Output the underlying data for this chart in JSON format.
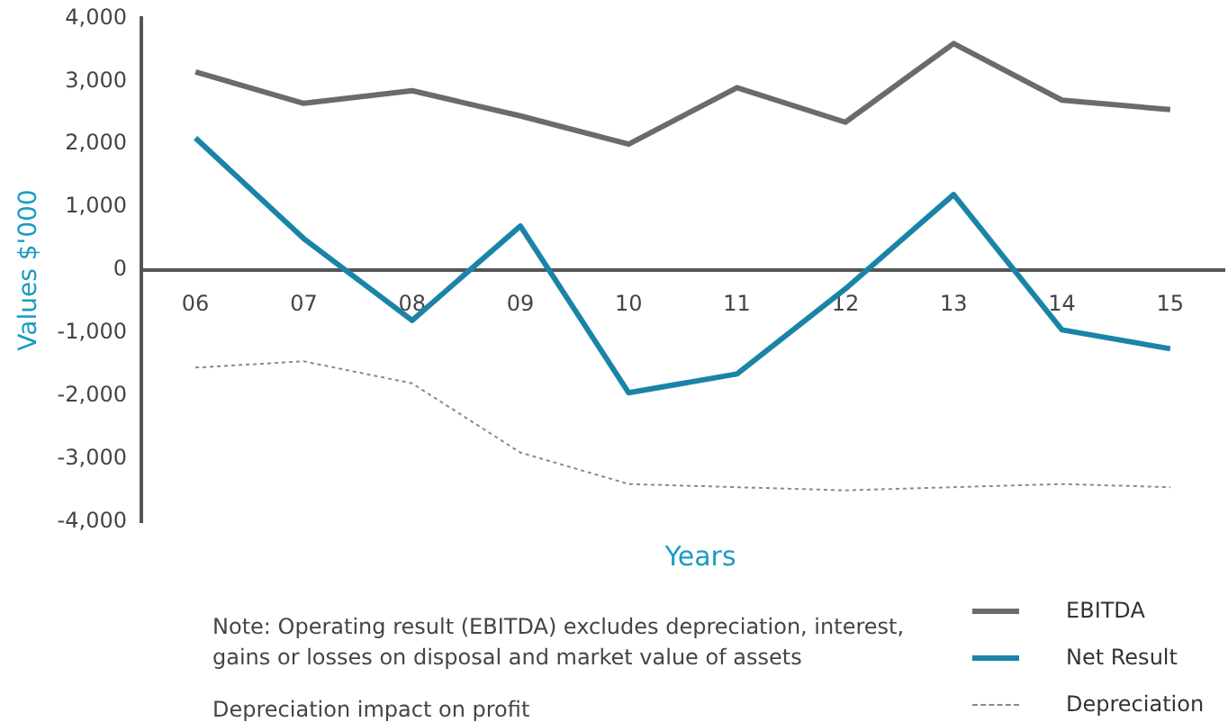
{
  "chart_data": {
    "type": "line",
    "xlabel": "Years",
    "ylabel": "Values $'000",
    "categories": [
      "06",
      "07",
      "08",
      "09",
      "10",
      "11",
      "12",
      "13",
      "14",
      "15"
    ],
    "series": [
      {
        "name": "EBITDA",
        "color": "#6b6b6b",
        "values": [
          3150,
          2650,
          2850,
          2450,
          2000,
          2900,
          2350,
          3600,
          2700,
          2550
        ],
        "line_style": "solid"
      },
      {
        "name": "Net Result",
        "color": "#1a84a8",
        "values": [
          2100,
          500,
          -800,
          700,
          -1950,
          -1650,
          -300,
          1200,
          -950,
          -1250
        ],
        "line_style": "solid"
      },
      {
        "name": "Depreciation",
        "color": "#8a8a8a",
        "values": [
          -1550,
          -1450,
          -1800,
          -2900,
          -3400,
          -3450,
          -3500,
          -3450,
          -3400,
          -3450
        ],
        "line_style": "dotted"
      }
    ],
    "ylim": [
      -4000,
      4000
    ],
    "yticks": [
      {
        "value": -4000,
        "label": "-4,000"
      },
      {
        "value": -3000,
        "label": "-3,000"
      },
      {
        "value": -2000,
        "label": "-2,000"
      },
      {
        "value": -1000,
        "label": "-1,000"
      },
      0,
      {
        "value": 1000,
        "label": "1,000"
      },
      {
        "value": 2000,
        "label": "2,000"
      },
      {
        "value": 3000,
        "label": "3,000"
      },
      {
        "value": 4000,
        "label": "4,000"
      }
    ],
    "grid": false,
    "legend": "bottom right",
    "marker": "none",
    "annotations": [
      "Note: Operating result (EBITDA) excludes depreciation, interest, gains or losses on disposal and market value of assets",
      "Depreciation impact on profit"
    ]
  }
}
